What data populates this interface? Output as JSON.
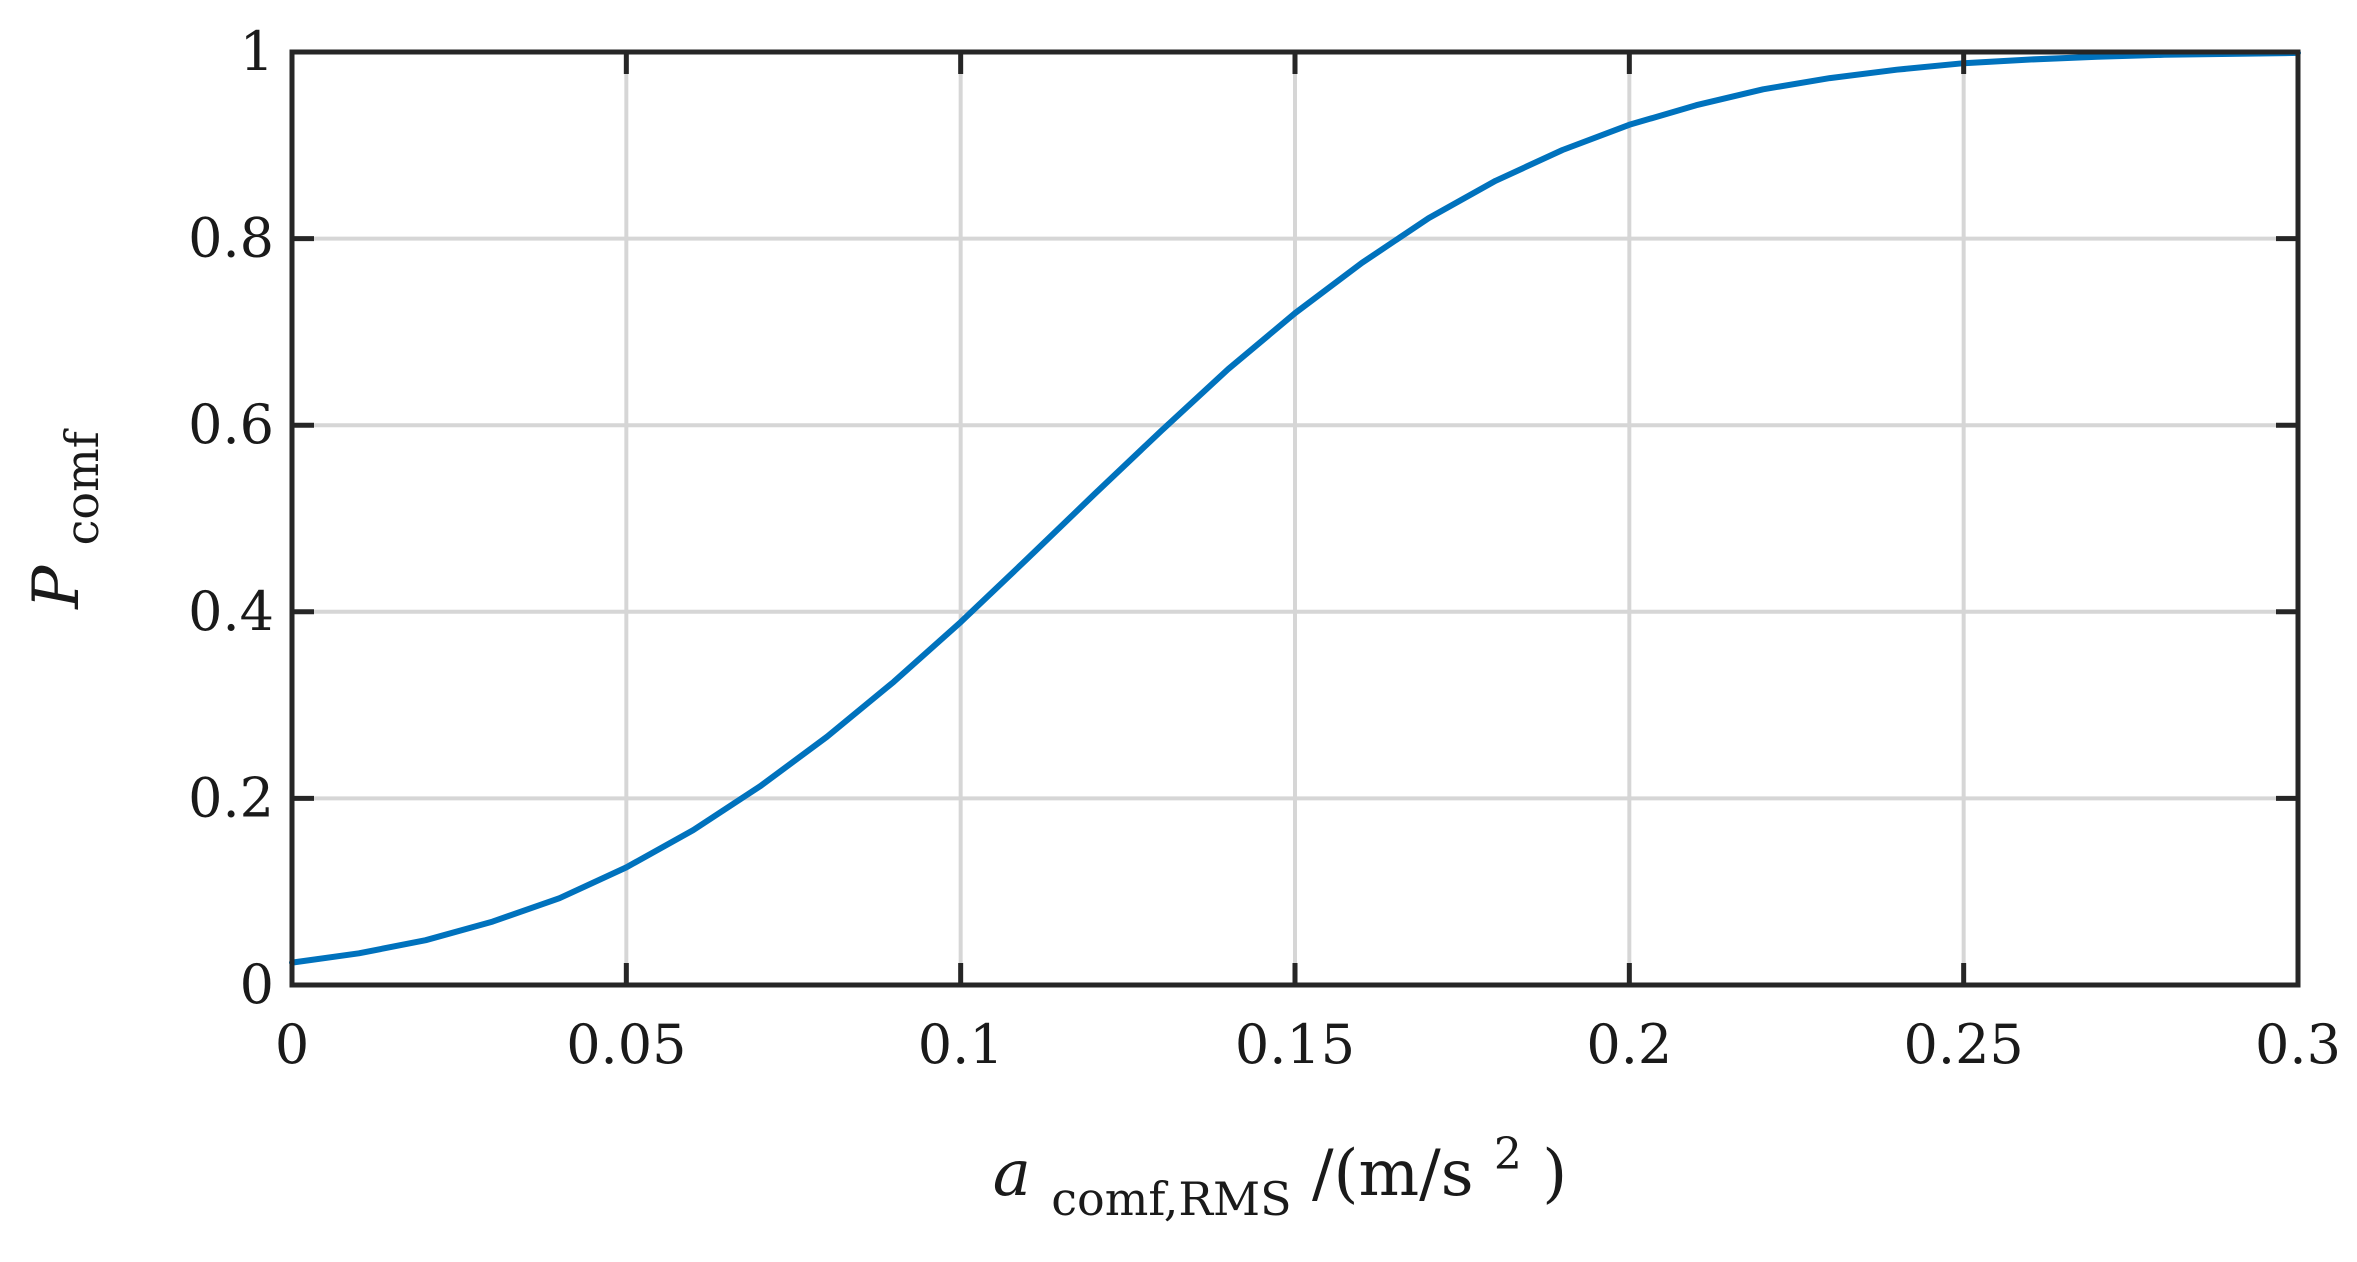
{
  "chart_data": {
    "type": "line",
    "title": "",
    "xlabel": {
      "base": "a",
      "sub": "comf,RMS",
      "rest": "/(m/s",
      "sup": "2",
      "close": ")"
    },
    "ylabel": {
      "base": "P",
      "sub": "comf"
    },
    "xlim": [
      0,
      0.3
    ],
    "ylim": [
      0,
      1
    ],
    "xticks": [
      0,
      0.05,
      0.1,
      0.15,
      0.2,
      0.25,
      0.3
    ],
    "xtick_labels": [
      "0",
      "0.05",
      "0.1",
      "0.15",
      "0.2",
      "0.25",
      "0.3"
    ],
    "yticks": [
      0,
      0.2,
      0.4,
      0.6,
      0.8,
      1
    ],
    "ytick_labels": [
      "0",
      "0.2",
      "0.4",
      "0.6",
      "0.8",
      "1"
    ],
    "grid": true,
    "series": [
      {
        "color": "#0072BD",
        "x": [
          0,
          0.01,
          0.02,
          0.03,
          0.04,
          0.05,
          0.06,
          0.07,
          0.08,
          0.09,
          0.1,
          0.11,
          0.12,
          0.13,
          0.14,
          0.15,
          0.16,
          0.17,
          0.18,
          0.19,
          0.2,
          0.21,
          0.22,
          0.23,
          0.24,
          0.25,
          0.26,
          0.27,
          0.28,
          0.29,
          0.3
        ],
        "y": [
          0.024,
          0.034,
          0.048,
          0.068,
          0.093,
          0.126,
          0.166,
          0.213,
          0.266,
          0.325,
          0.389,
          0.457,
          0.526,
          0.594,
          0.66,
          0.72,
          0.774,
          0.822,
          0.862,
          0.895,
          0.922,
          0.943,
          0.96,
          0.972,
          0.981,
          0.988,
          0.992,
          0.995,
          0.997,
          0.998,
          0.999
        ]
      }
    ]
  }
}
